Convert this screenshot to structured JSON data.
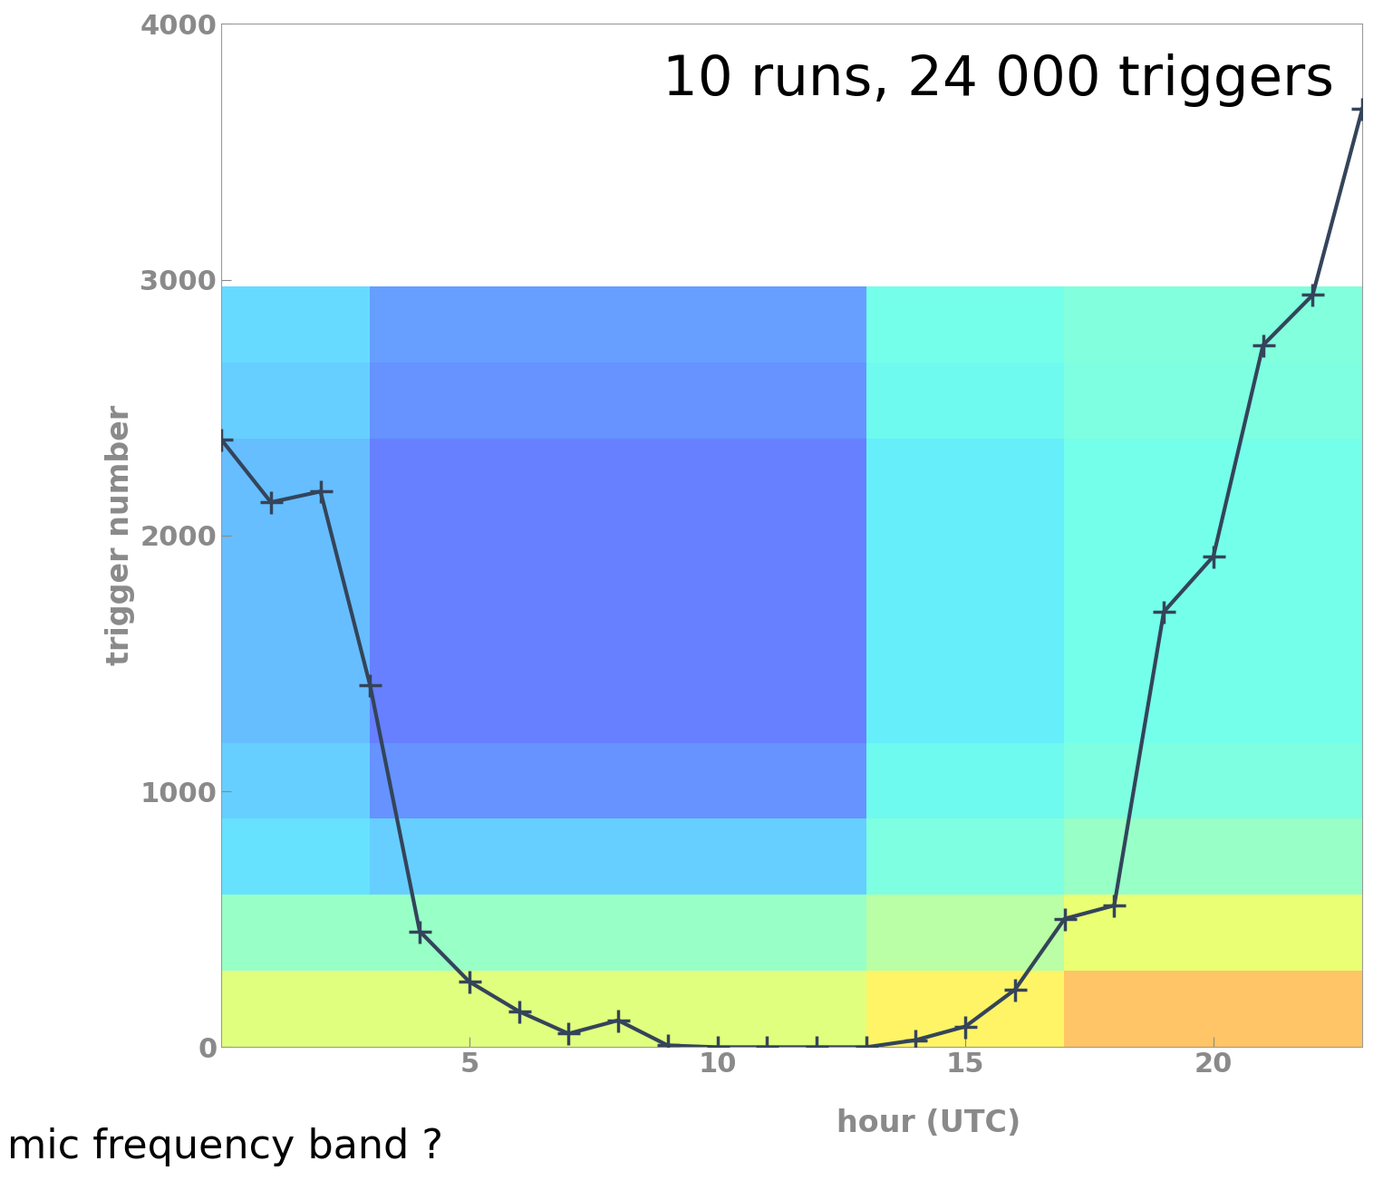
{
  "chart_data": {
    "type": "line",
    "title": "10 runs, 24 000 triggers",
    "x_label": "hour (UTC)",
    "y_label": "trigger number",
    "annotations": [
      "mic frequency band ?"
    ],
    "x": [
      0,
      1,
      2,
      3,
      4,
      5,
      6,
      7,
      8,
      9,
      10,
      11,
      12,
      13,
      14,
      15,
      16,
      17,
      18,
      19,
      20,
      21,
      22,
      23
    ],
    "series": [
      {
        "name": "triggers",
        "color": "#34445a",
        "marker": "+",
        "line_style": "solid",
        "values": [
          2375,
          2130,
          2172,
          1414,
          453,
          256,
          140,
          53,
          105,
          7,
          0,
          0,
          0,
          0,
          28,
          81,
          225,
          502,
          554,
          1702,
          1919,
          2744,
          2940,
          3667
        ]
      }
    ],
    "xlim": [
      0,
      23
    ],
    "xticks": [
      5,
      10,
      15,
      20
    ],
    "ylim": [
      0,
      4000
    ],
    "yticks": [
      0,
      1000,
      2000,
      3000,
      4000
    ],
    "grid": false,
    "heatmap_xrange": [
      0,
      23
    ],
    "heatmap_yrange": [
      0,
      2970
    ],
    "heatmap_range": [
      0,
      1
    ],
    "heatmap_cells": [
      [
        0.6,
        0.6,
        0.6,
        0.6,
        0.6,
        0.6,
        0.6,
        0.6,
        0.6,
        0.6,
        0.6,
        0.6,
        0.6,
        0.66,
        0.66,
        0.66,
        0.66,
        0.74,
        0.74,
        0.74,
        0.74,
        0.74,
        0.74
      ],
      [
        0.45,
        0.45,
        0.45,
        0.45,
        0.45,
        0.45,
        0.45,
        0.45,
        0.45,
        0.45,
        0.45,
        0.45,
        0.45,
        0.52,
        0.52,
        0.52,
        0.52,
        0.62,
        0.62,
        0.62,
        0.62,
        0.62,
        0.62
      ],
      [
        0.33,
        0.33,
        0.33,
        0.3,
        0.3,
        0.3,
        0.3,
        0.3,
        0.3,
        0.3,
        0.3,
        0.3,
        0.3,
        0.4,
        0.4,
        0.4,
        0.4,
        0.45,
        0.45,
        0.45,
        0.45,
        0.45,
        0.45
      ],
      [
        0.3,
        0.3,
        0.3,
        0.2,
        0.2,
        0.2,
        0.2,
        0.2,
        0.2,
        0.2,
        0.2,
        0.2,
        0.2,
        0.37,
        0.37,
        0.37,
        0.37,
        0.4,
        0.4,
        0.4,
        0.4,
        0.4,
        0.4
      ],
      [
        0.27,
        0.27,
        0.27,
        0.17,
        0.17,
        0.17,
        0.17,
        0.17,
        0.17,
        0.17,
        0.17,
        0.17,
        0.17,
        0.35,
        0.35,
        0.35,
        0.35,
        0.38,
        0.38,
        0.38,
        0.38,
        0.38,
        0.38
      ],
      [
        0.27,
        0.27,
        0.27,
        0.17,
        0.17,
        0.17,
        0.17,
        0.17,
        0.17,
        0.17,
        0.17,
        0.17,
        0.17,
        0.35,
        0.35,
        0.35,
        0.35,
        0.38,
        0.38,
        0.38,
        0.38,
        0.38,
        0.38
      ],
      [
        0.27,
        0.27,
        0.27,
        0.17,
        0.17,
        0.17,
        0.17,
        0.17,
        0.17,
        0.17,
        0.17,
        0.17,
        0.17,
        0.35,
        0.35,
        0.35,
        0.35,
        0.38,
        0.38,
        0.38,
        0.38,
        0.38,
        0.38
      ],
      [
        0.27,
        0.27,
        0.27,
        0.17,
        0.17,
        0.17,
        0.17,
        0.17,
        0.17,
        0.17,
        0.17,
        0.17,
        0.17,
        0.35,
        0.35,
        0.35,
        0.35,
        0.38,
        0.38,
        0.38,
        0.38,
        0.38,
        0.38
      ],
      [
        0.3,
        0.3,
        0.3,
        0.2,
        0.2,
        0.2,
        0.2,
        0.2,
        0.2,
        0.2,
        0.2,
        0.2,
        0.2,
        0.37,
        0.37,
        0.37,
        0.37,
        0.4,
        0.4,
        0.4,
        0.4,
        0.4,
        0.4
      ],
      [
        0.32,
        0.32,
        0.32,
        0.22,
        0.22,
        0.22,
        0.22,
        0.22,
        0.22,
        0.22,
        0.22,
        0.22,
        0.22,
        0.38,
        0.38,
        0.38,
        0.38,
        0.41,
        0.41,
        0.41,
        0.41,
        0.41,
        0.41
      ]
    ]
  }
}
